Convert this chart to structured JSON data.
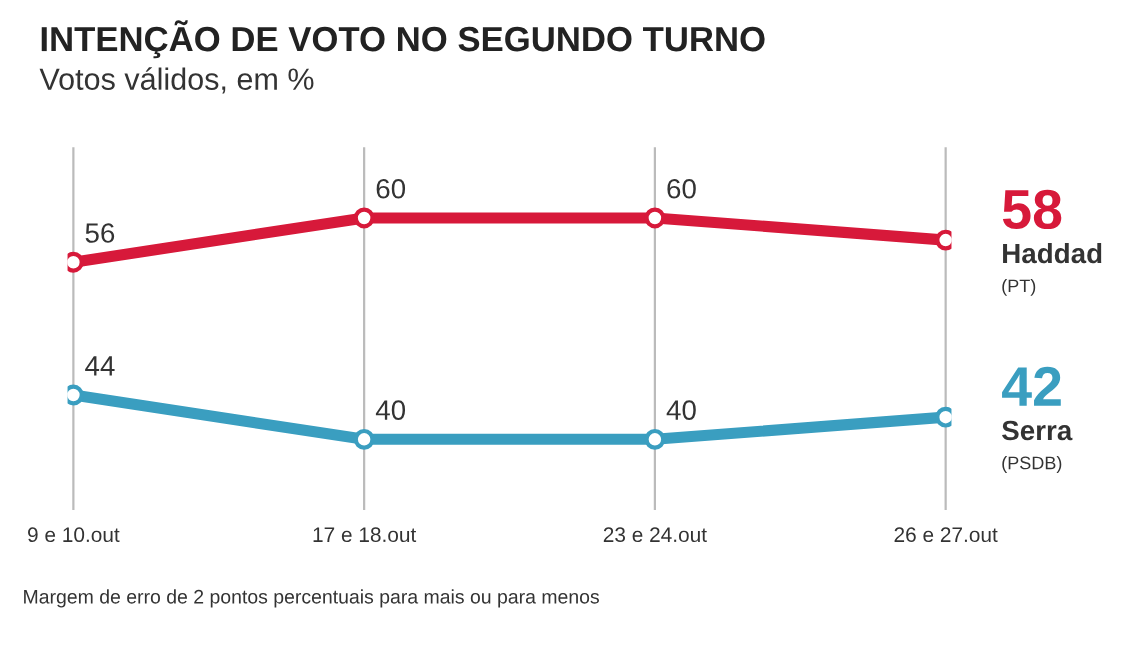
{
  "chart_data": {
    "type": "line",
    "title": "INTENÇÃO DE VOTO NO SEGUNDO TURNO",
    "subtitle": "Votos válidos, em %",
    "categories": [
      "9 e 10.out",
      "17 e 18.out",
      "23 e 24.out",
      "26 e 27.out"
    ],
    "series": [
      {
        "name": "Haddad",
        "color": "#d7193a",
        "values": [
          56,
          60,
          60,
          58
        ],
        "value_labels": [
          "56",
          "60",
          "60",
          "58"
        ]
      },
      {
        "name": "Serra",
        "color": "#3a9ec0",
        "values": [
          44,
          40,
          40,
          42
        ],
        "value_labels": [
          "44",
          "40",
          "40",
          "42"
        ]
      }
    ],
    "annotations": [
      "(PT)",
      "(PSDB)",
      "Margem de erro de 2 pontos percentuais para mais ou para menos"
    ],
    "grid": "x",
    "marker": "circle",
    "line_style": "solid",
    "legend": false
  }
}
